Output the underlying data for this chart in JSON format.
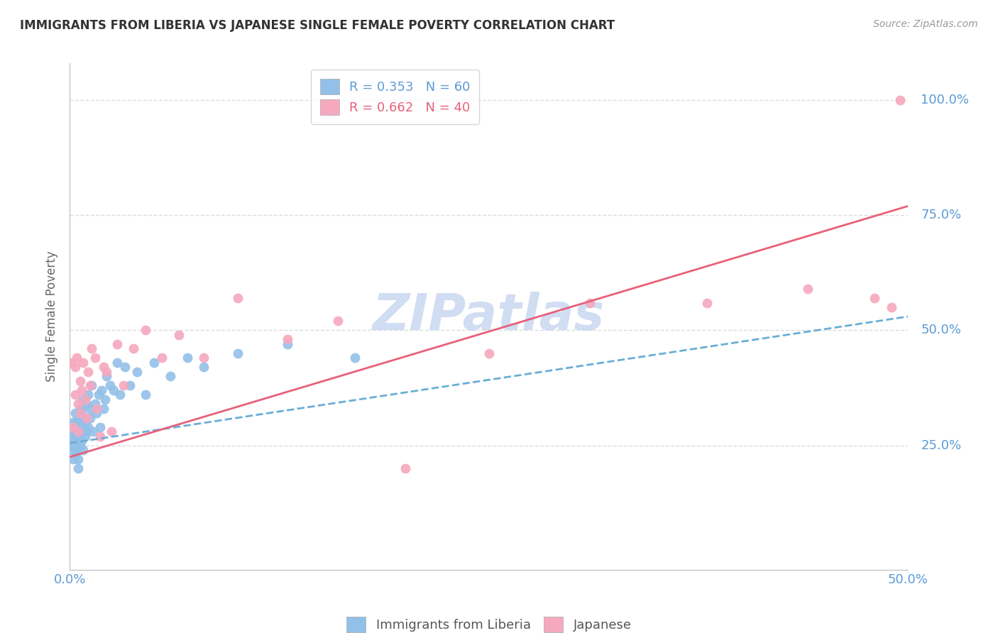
{
  "title": "IMMIGRANTS FROM LIBERIA VS JAPANESE SINGLE FEMALE POVERTY CORRELATION CHART",
  "source": "Source: ZipAtlas.com",
  "ylabel": "Single Female Poverty",
  "xlim": [
    0.0,
    0.5
  ],
  "ylim": [
    -0.02,
    1.08
  ],
  "yticks": [
    0.0,
    0.25,
    0.5,
    0.75,
    1.0
  ],
  "ytick_labels": [
    "",
    "25.0%",
    "50.0%",
    "75.0%",
    "100.0%"
  ],
  "xticks": [
    0.0,
    0.1,
    0.2,
    0.3,
    0.4,
    0.5
  ],
  "xtick_labels": [
    "0.0%",
    "",
    "",
    "",
    "",
    "50.0%"
  ],
  "legend_r1": "R = 0.353   N = 60",
  "legend_r2": "R = 0.662   N = 40",
  "blue_color": "#92C0E8",
  "pink_color": "#F5A8BE",
  "trendline_blue_color": "#6BAED6",
  "trendline_pink_color": "#E8607A",
  "axis_color": "#BBBBBB",
  "tick_label_color": "#5B9BD5",
  "grid_color": "#DDDDDD",
  "watermark_color": "#C8D8F0",
  "blue_scatter_x": [
    0.001,
    0.001,
    0.002,
    0.002,
    0.002,
    0.003,
    0.003,
    0.003,
    0.003,
    0.004,
    0.004,
    0.004,
    0.004,
    0.005,
    0.005,
    0.005,
    0.005,
    0.006,
    0.006,
    0.006,
    0.006,
    0.007,
    0.007,
    0.007,
    0.008,
    0.008,
    0.008,
    0.009,
    0.009,
    0.01,
    0.01,
    0.011,
    0.011,
    0.012,
    0.012,
    0.013,
    0.014,
    0.015,
    0.016,
    0.017,
    0.018,
    0.019,
    0.02,
    0.021,
    0.022,
    0.024,
    0.026,
    0.028,
    0.03,
    0.033,
    0.036,
    0.04,
    0.045,
    0.05,
    0.06,
    0.07,
    0.08,
    0.1,
    0.13,
    0.17
  ],
  "blue_scatter_y": [
    0.27,
    0.25,
    0.3,
    0.24,
    0.22,
    0.28,
    0.26,
    0.23,
    0.32,
    0.27,
    0.25,
    0.3,
    0.24,
    0.29,
    0.26,
    0.22,
    0.2,
    0.28,
    0.25,
    0.33,
    0.27,
    0.32,
    0.26,
    0.31,
    0.29,
    0.35,
    0.24,
    0.3,
    0.27,
    0.34,
    0.28,
    0.36,
    0.29,
    0.33,
    0.31,
    0.38,
    0.28,
    0.34,
    0.32,
    0.36,
    0.29,
    0.37,
    0.33,
    0.35,
    0.4,
    0.38,
    0.37,
    0.43,
    0.36,
    0.42,
    0.38,
    0.41,
    0.36,
    0.43,
    0.4,
    0.44,
    0.42,
    0.45,
    0.47,
    0.44
  ],
  "pink_scatter_x": [
    0.001,
    0.002,
    0.003,
    0.003,
    0.004,
    0.005,
    0.005,
    0.006,
    0.006,
    0.007,
    0.008,
    0.009,
    0.01,
    0.011,
    0.012,
    0.013,
    0.015,
    0.016,
    0.018,
    0.02,
    0.022,
    0.025,
    0.028,
    0.032,
    0.038,
    0.045,
    0.055,
    0.065,
    0.08,
    0.1,
    0.13,
    0.16,
    0.2,
    0.25,
    0.31,
    0.38,
    0.44,
    0.48,
    0.49,
    0.495
  ],
  "pink_scatter_y": [
    0.43,
    0.29,
    0.42,
    0.36,
    0.44,
    0.28,
    0.34,
    0.32,
    0.39,
    0.37,
    0.43,
    0.35,
    0.31,
    0.41,
    0.38,
    0.46,
    0.44,
    0.33,
    0.27,
    0.42,
    0.41,
    0.28,
    0.47,
    0.38,
    0.46,
    0.5,
    0.44,
    0.49,
    0.44,
    0.57,
    0.48,
    0.52,
    0.2,
    0.45,
    0.56,
    0.56,
    0.59,
    0.57,
    0.55,
    1.0
  ],
  "blue_trend_x": [
    0.0,
    0.5
  ],
  "blue_trend_y": [
    0.255,
    0.53
  ],
  "pink_trend_x": [
    0.0,
    0.5
  ],
  "pink_trend_y": [
    0.225,
    0.77
  ]
}
